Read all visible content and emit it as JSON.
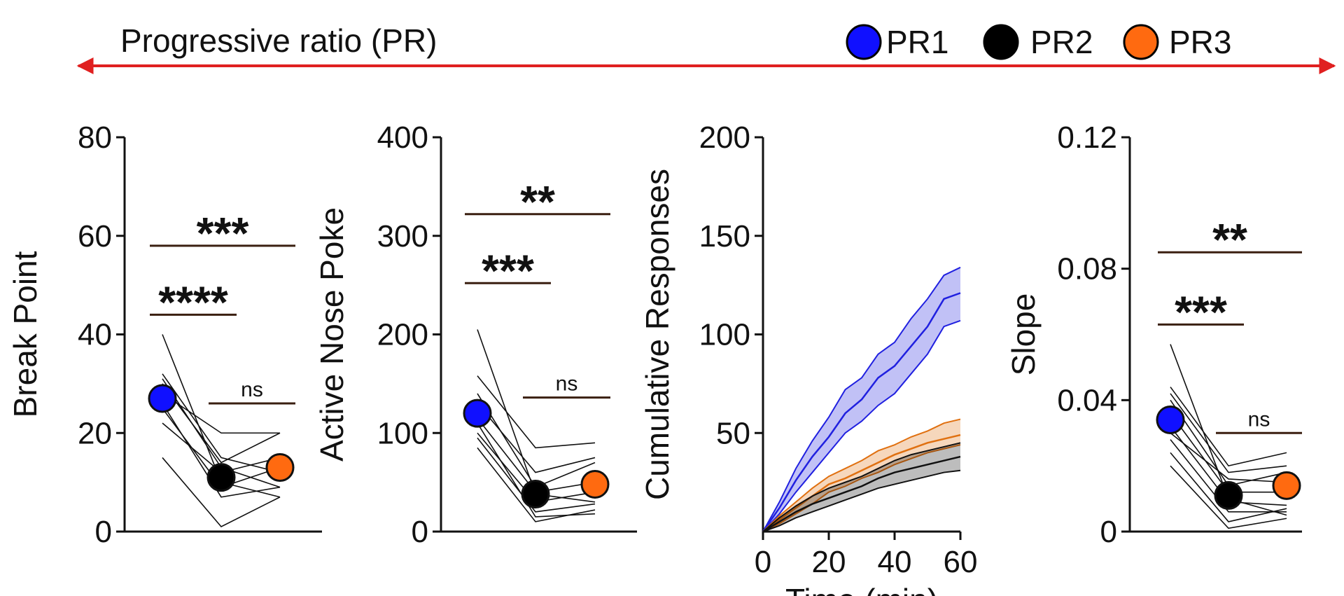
{
  "header": {
    "title": "Progressive ratio (PR)",
    "legend": [
      {
        "label": "PR1",
        "color": "#1010ff"
      },
      {
        "label": "PR2",
        "color": "#000000"
      },
      {
        "label": "PR3",
        "color": "#ff6a10"
      }
    ],
    "arrow_color": "#e02020"
  },
  "chart_data": [
    {
      "type": "scatter",
      "ylabel": "Break Point",
      "ylim": [
        0,
        80
      ],
      "yticks": [
        0,
        20,
        40,
        60,
        80
      ],
      "categories": [
        "PR1",
        "PR2",
        "PR3"
      ],
      "means": [
        27,
        11,
        13
      ],
      "subjects": [
        [
          40,
          10,
          7
        ],
        [
          32,
          15,
          12
        ],
        [
          30,
          14,
          20
        ],
        [
          31,
          13,
          9
        ],
        [
          28,
          20,
          20
        ],
        [
          25,
          9,
          13
        ],
        [
          22,
          12,
          15
        ],
        [
          15,
          1,
          7
        ],
        [
          26,
          7,
          9
        ]
      ],
      "comparisons": [
        {
          "from": "PR1",
          "to": "PR2",
          "label": "****",
          "y": 44
        },
        {
          "from": "PR1",
          "to": "PR3",
          "label": "***",
          "y": 58
        },
        {
          "from": "PR2",
          "to": "PR3",
          "label": "ns",
          "y": 26
        }
      ]
    },
    {
      "type": "scatter",
      "ylabel": "Active Nose Poke",
      "ylim": [
        0,
        400
      ],
      "yticks": [
        0,
        100,
        200,
        300,
        400
      ],
      "categories": [
        "PR1",
        "PR2",
        "PR3"
      ],
      "means": [
        120,
        38,
        48
      ],
      "subjects": [
        [
          205,
          38,
          30
        ],
        [
          158,
          85,
          90
        ],
        [
          140,
          45,
          70
        ],
        [
          130,
          60,
          75
        ],
        [
          115,
          40,
          50
        ],
        [
          100,
          30,
          40
        ],
        [
          95,
          20,
          28
        ],
        [
          85,
          10,
          22
        ],
        [
          110,
          15,
          18
        ]
      ],
      "comparisons": [
        {
          "from": "PR1",
          "to": "PR2",
          "label": "***",
          "y": 252
        },
        {
          "from": "PR1",
          "to": "PR3",
          "label": "**",
          "y": 322
        },
        {
          "from": "PR2",
          "to": "PR3",
          "label": "ns",
          "y": 136
        }
      ]
    },
    {
      "type": "line",
      "ylabel": "Cumulative Responses",
      "xlabel": "Time (min)",
      "xlim": [
        0,
        60
      ],
      "xticks": [
        0,
        20,
        40,
        60
      ],
      "ylim": [
        0,
        200
      ],
      "yticks": [
        50,
        100,
        150,
        200
      ],
      "x": [
        0,
        5,
        10,
        15,
        20,
        25,
        30,
        35,
        40,
        45,
        50,
        55,
        60
      ],
      "series": [
        {
          "name": "PR1",
          "color": "#2020e0",
          "values": [
            0,
            12,
            26,
            38,
            48,
            60,
            67,
            78,
            84,
            94,
            104,
            118,
            121
          ],
          "lower": [
            0,
            9,
            20,
            30,
            40,
            50,
            56,
            64,
            70,
            80,
            90,
            104,
            107
          ],
          "upper": [
            0,
            15,
            32,
            46,
            58,
            72,
            78,
            90,
            96,
            108,
            118,
            130,
            134
          ]
        },
        {
          "name": "PR3",
          "color": "#e07010",
          "values": [
            0,
            6,
            12,
            18,
            24,
            27,
            31,
            35,
            39,
            42,
            45,
            47,
            49
          ],
          "lower": [
            0,
            4,
            9,
            14,
            20,
            23,
            27,
            30,
            34,
            37,
            40,
            42,
            44
          ],
          "upper": [
            0,
            8,
            15,
            22,
            28,
            32,
            36,
            41,
            44,
            48,
            51,
            55,
            57
          ]
        },
        {
          "name": "PR2",
          "color": "#111111",
          "values": [
            0,
            5,
            10,
            14,
            17,
            20,
            23,
            27,
            30,
            32,
            34,
            36,
            38
          ],
          "lower": [
            0,
            3,
            7,
            10,
            13,
            16,
            19,
            22,
            24,
            26,
            28,
            30,
            31
          ],
          "upper": [
            0,
            7,
            13,
            18,
            22,
            25,
            28,
            32,
            36,
            39,
            41,
            43,
            45
          ]
        }
      ]
    },
    {
      "type": "scatter",
      "ylabel": "Slope",
      "ylim": [
        0,
        0.12
      ],
      "yticks": [
        "0",
        "0.04",
        "0.08",
        "0.12"
      ],
      "categories": [
        "PR1",
        "PR2",
        "PR3"
      ],
      "means": [
        0.034,
        0.011,
        0.014
      ],
      "subjects": [
        [
          0.057,
          0.01,
          0.005
        ],
        [
          0.044,
          0.02,
          0.024
        ],
        [
          0.042,
          0.018,
          0.02
        ],
        [
          0.04,
          0.014,
          0.018
        ],
        [
          0.036,
          0.012,
          0.012
        ],
        [
          0.032,
          0.009,
          0.008
        ],
        [
          0.028,
          0.006,
          0.006
        ],
        [
          0.024,
          0.003,
          0.007
        ],
        [
          0.02,
          0.001,
          0.004
        ],
        [
          0.03,
          0.016,
          0.015
        ]
      ],
      "comparisons": [
        {
          "from": "PR1",
          "to": "PR2",
          "label": "***",
          "y": 0.063
        },
        {
          "from": "PR1",
          "to": "PR3",
          "label": "**",
          "y": 0.085
        },
        {
          "from": "PR2",
          "to": "PR3",
          "label": "ns",
          "y": 0.03
        }
      ]
    }
  ]
}
